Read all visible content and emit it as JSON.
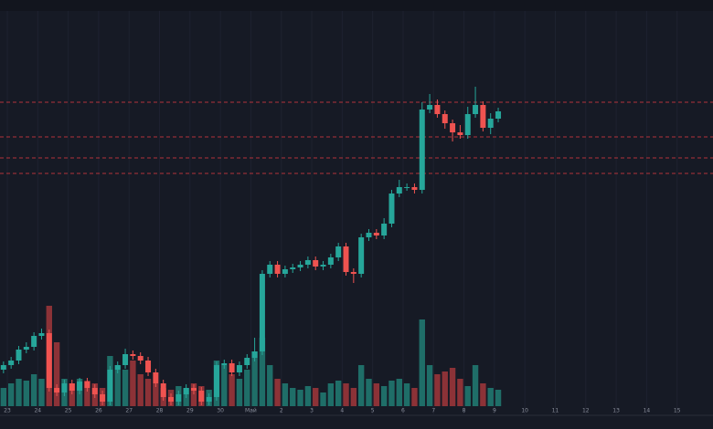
{
  "chart_data": {
    "type": "candlestick",
    "x": [
      22.875,
      23.125,
      23.375,
      23.625,
      23.875,
      24.125,
      24.375,
      24.625,
      24.875,
      25.125,
      25.375,
      25.625,
      25.875,
      26.125,
      26.375,
      26.625,
      26.875,
      27.125,
      27.375,
      27.625,
      27.875,
      28.125,
      28.375,
      28.625,
      28.875,
      29.125,
      29.375,
      29.625,
      29.875,
      30.125,
      30.375,
      30.625,
      30.875,
      31.125,
      31.375,
      31.625,
      31.875,
      32.125,
      32.375,
      32.625,
      32.875,
      33.125,
      33.375,
      33.625,
      33.875,
      34.125,
      34.375,
      34.625,
      34.875,
      35.125,
      35.375,
      35.625,
      35.875,
      36.125,
      36.375,
      36.625,
      36.875,
      37.125,
      37.375,
      37.625,
      37.875,
      38.125,
      38.375,
      38.625,
      38.875,
      39.125
    ],
    "open": [
      50,
      55,
      60,
      72,
      75,
      87,
      90,
      30,
      25,
      35,
      27,
      37,
      30,
      23,
      15,
      50,
      55,
      67,
      65,
      60,
      47,
      35,
      20,
      15,
      23,
      30,
      27,
      15,
      20,
      55,
      57,
      47,
      55,
      63,
      70,
      155,
      165,
      155,
      160,
      162,
      165,
      170,
      163,
      165,
      173,
      185,
      157,
      155,
      195,
      200,
      197,
      210,
      243,
      250,
      250,
      247,
      335,
      340,
      330,
      320,
      310,
      307,
      330,
      340,
      315,
      325
    ],
    "high": [
      59,
      64,
      76,
      80,
      91,
      95,
      94,
      34,
      39,
      39,
      41,
      41,
      34,
      27,
      54,
      59,
      73,
      71,
      69,
      64,
      51,
      39,
      24,
      27,
      34,
      34,
      31,
      24,
      59,
      61,
      61,
      59,
      67,
      85,
      159,
      169,
      169,
      164,
      166,
      169,
      174,
      174,
      169,
      177,
      189,
      189,
      161,
      199,
      204,
      204,
      216,
      247,
      258,
      254,
      254,
      343,
      352,
      346,
      334,
      324,
      318,
      338,
      360,
      344,
      331,
      337
    ],
    "low": [
      46,
      51,
      56,
      68,
      71,
      83,
      26,
      21,
      21,
      23,
      23,
      26,
      19,
      11,
      11,
      46,
      51,
      61,
      56,
      43,
      31,
      16,
      11,
      11,
      19,
      23,
      11,
      11,
      16,
      51,
      43,
      43,
      51,
      59,
      66,
      151,
      151,
      151,
      156,
      158,
      161,
      159,
      159,
      161,
      169,
      153,
      145,
      151,
      191,
      193,
      193,
      206,
      239,
      246,
      243,
      243,
      331,
      326,
      314,
      300,
      303,
      303,
      326,
      311,
      308,
      321
    ],
    "close": [
      55,
      60,
      72,
      75,
      87,
      90,
      30,
      25,
      35,
      27,
      37,
      30,
      23,
      15,
      50,
      55,
      67,
      65,
      60,
      47,
      35,
      20,
      15,
      23,
      30,
      27,
      15,
      20,
      55,
      57,
      47,
      55,
      63,
      70,
      155,
      165,
      155,
      160,
      162,
      165,
      170,
      163,
      165,
      173,
      185,
      157,
      155,
      195,
      200,
      197,
      210,
      243,
      250,
      250,
      247,
      335,
      340,
      330,
      320,
      310,
      307,
      330,
      340,
      315,
      325,
      333
    ],
    "volume": [
      20,
      25,
      30,
      28,
      35,
      30,
      110,
      70,
      30,
      25,
      30,
      28,
      25,
      20,
      55,
      45,
      40,
      50,
      35,
      30,
      25,
      20,
      18,
      22,
      20,
      25,
      22,
      18,
      50,
      45,
      35,
      30,
      40,
      60,
      75,
      45,
      30,
      25,
      20,
      18,
      22,
      20,
      15,
      25,
      28,
      25,
      20,
      45,
      30,
      25,
      22,
      28,
      30,
      25,
      20,
      95,
      45,
      35,
      38,
      42,
      30,
      22,
      45,
      25,
      20,
      18
    ],
    "up_color": "#26a69a",
    "down_color": "#ef5350",
    "volume_up_color": "#1f6e68",
    "volume_down_color": "#8c3237",
    "levels": [
      343,
      305,
      282,
      265
    ],
    "level_color": "#b2333a",
    "xlim": [
      22.76,
      46.18
    ],
    "ylim": [
      0,
      455
    ],
    "y2lim": [
      0,
      120
    ],
    "grid": true,
    "xticks": [
      23,
      24,
      25,
      26,
      27,
      28,
      29,
      30,
      {
        "value": 31,
        "label": "Май"
      },
      {
        "value": 32,
        "label": "2"
      },
      {
        "value": 33,
        "label": "3"
      },
      {
        "value": 34,
        "label": "4"
      },
      {
        "value": 35,
        "label": "5"
      },
      {
        "value": 36,
        "label": "6"
      },
      {
        "value": 37,
        "label": "7"
      },
      {
        "value": 38,
        "label": "8"
      },
      {
        "value": 39,
        "label": "9"
      },
      {
        "value": 40,
        "label": "10"
      },
      {
        "value": 41,
        "label": "11"
      },
      {
        "value": 42,
        "label": "12"
      },
      {
        "value": 43,
        "label": "13"
      },
      {
        "value": 44,
        "label": "14"
      },
      {
        "value": 45,
        "label": "15"
      }
    ]
  }
}
